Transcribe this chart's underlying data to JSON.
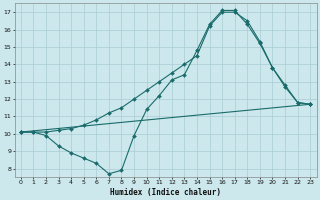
{
  "title": "",
  "xlabel": "Humidex (Indice chaleur)",
  "bg_color": "#cce8ec",
  "grid_color": "#aaccd4",
  "line_color": "#1a6b6b",
  "xlim": [
    -0.5,
    23.5
  ],
  "ylim": [
    7.5,
    17.5
  ],
  "xticks": [
    0,
    1,
    2,
    3,
    4,
    5,
    6,
    7,
    8,
    9,
    10,
    11,
    12,
    13,
    14,
    15,
    16,
    17,
    18,
    19,
    20,
    21,
    22,
    23
  ],
  "yticks": [
    8,
    9,
    10,
    11,
    12,
    13,
    14,
    15,
    16,
    17
  ],
  "line1_x": [
    0,
    1,
    2,
    3,
    4,
    5,
    6,
    7,
    8,
    9,
    10,
    11,
    12,
    13,
    14,
    15,
    16,
    17,
    18,
    19,
    20,
    21,
    22,
    23
  ],
  "line1_y": [
    10.1,
    10.1,
    10.1,
    10.2,
    10.3,
    10.5,
    10.8,
    11.2,
    11.5,
    12.0,
    12.5,
    13.0,
    13.5,
    14.0,
    14.5,
    16.2,
    17.0,
    17.0,
    16.5,
    15.3,
    13.8,
    12.8,
    11.8,
    11.7
  ],
  "line2_x": [
    0,
    1,
    2,
    3,
    4,
    5,
    6,
    7,
    8,
    9,
    10,
    11,
    12,
    13,
    14,
    15,
    16,
    17,
    18,
    19,
    20,
    21,
    22,
    23
  ],
  "line2_y": [
    10.1,
    10.1,
    9.9,
    9.3,
    8.9,
    8.6,
    8.3,
    7.7,
    7.9,
    9.9,
    11.4,
    12.2,
    13.1,
    13.4,
    14.8,
    16.3,
    17.1,
    17.1,
    16.3,
    15.2,
    13.8,
    12.7,
    11.8,
    11.7
  ],
  "line3_x": [
    0,
    23
  ],
  "line3_y": [
    10.1,
    11.7
  ],
  "marker_size": 2.0,
  "line_width": 0.8,
  "tick_fontsize": 4.5,
  "xlabel_fontsize": 5.5
}
